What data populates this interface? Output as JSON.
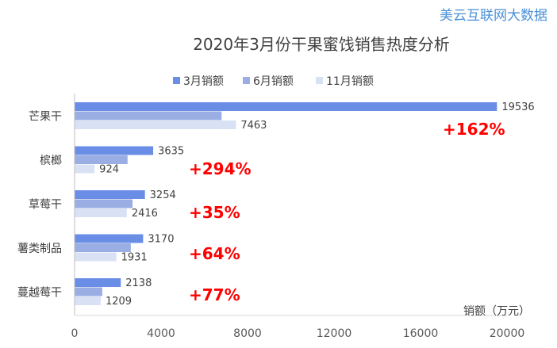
{
  "watermark": "美云互联网大数据",
  "chart_data": {
    "type": "bar",
    "orientation": "horizontal",
    "title": "2020年3月份干果蜜饯销售热度分析",
    "categories": [
      "芒果干",
      "槟榔",
      "草莓干",
      "薯类制品",
      "蔓越莓干"
    ],
    "series": [
      {
        "name": "3月销额",
        "color": "#6a8ee6",
        "values": [
          19536,
          3635,
          3254,
          3170,
          2138
        ]
      },
      {
        "name": "6月销额",
        "color": "#9aaee3",
        "values": [
          6800,
          2450,
          2680,
          2600,
          1280
        ]
      },
      {
        "name": "11月销额",
        "color": "#d9e1f4",
        "values": [
          7463,
          924,
          2416,
          1931,
          1209
        ]
      }
    ],
    "labeled_series": [
      "3月销额",
      "11月销额"
    ],
    "annotations": [
      "+162%",
      "+294%",
      "+35%",
      "+64%",
      "+77%"
    ],
    "annotation_color": "#ff0000",
    "xlabel": "销额（万元）",
    "xlim": [
      0,
      20000
    ],
    "xticks": [
      "0",
      "4000",
      "8000",
      "12000",
      "16000",
      "20000"
    ],
    "legend_position": "top",
    "grid": false
  }
}
